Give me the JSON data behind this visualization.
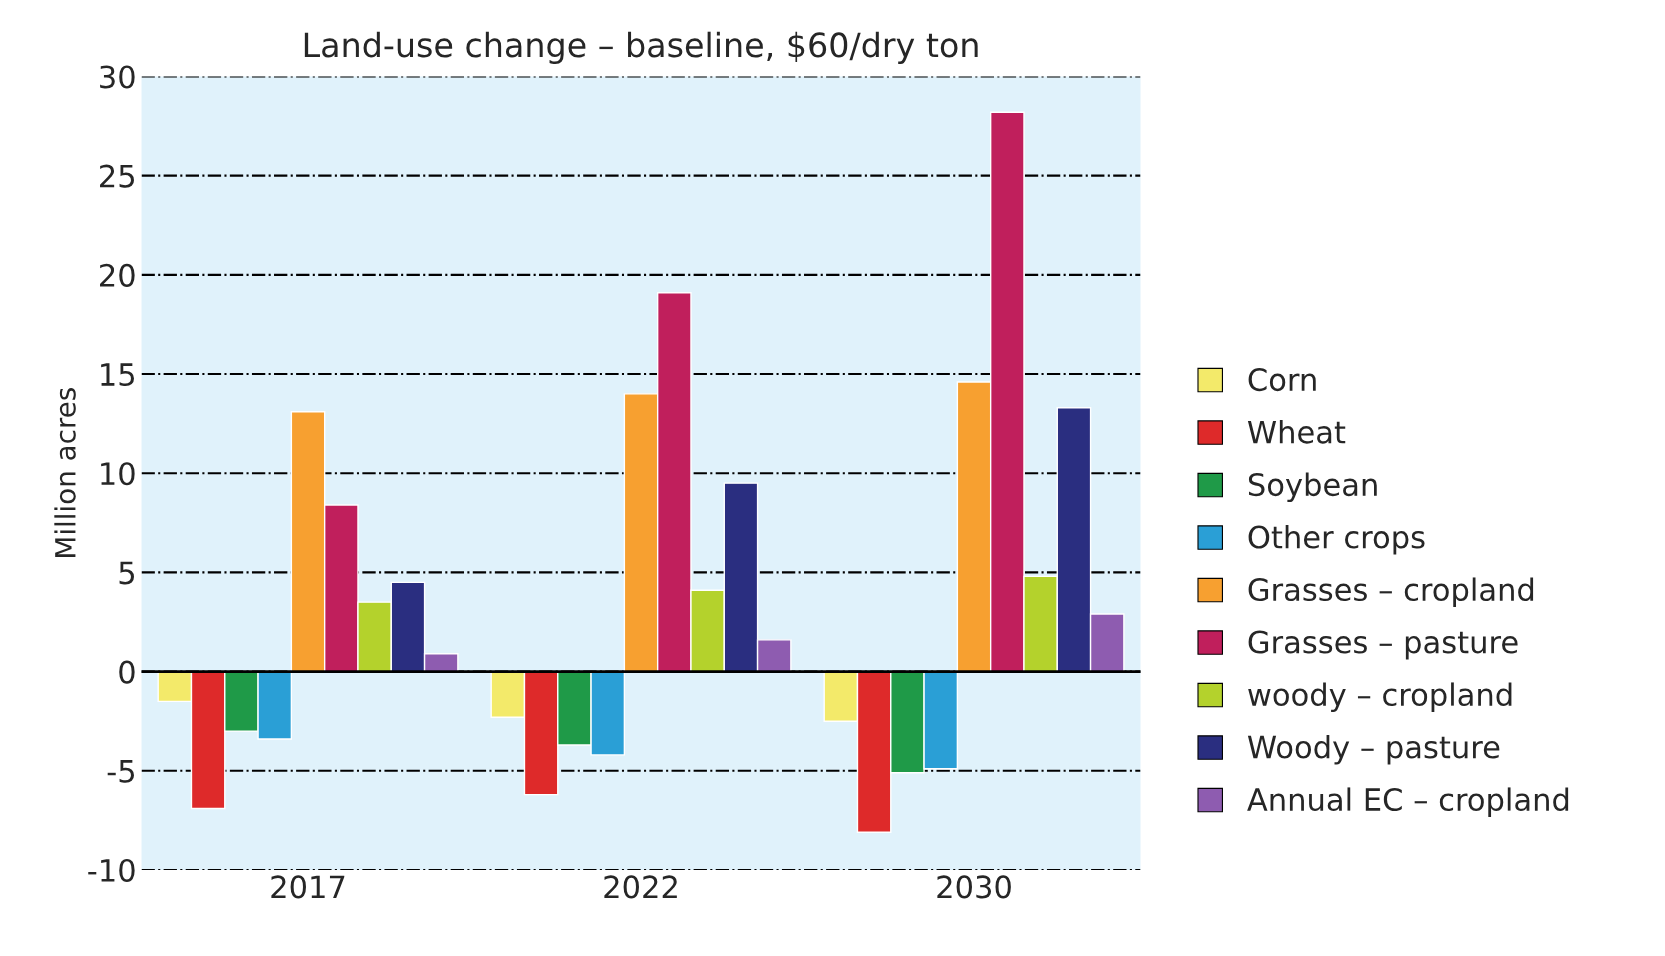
{
  "chart_data": {
    "type": "bar",
    "title": "Land-use change – baseline, $60/dry ton",
    "ylabel": "Million acres",
    "categories": [
      "2017",
      "2022",
      "2030"
    ],
    "series": [
      {
        "name": "Corn",
        "color": "#f3ea6a",
        "values": [
          -1.5,
          -2.3,
          -2.5
        ]
      },
      {
        "name": "Wheat",
        "color": "#de2a2a",
        "values": [
          -6.9,
          -6.2,
          -8.1
        ]
      },
      {
        "name": "Soybean",
        "color": "#1f9a48",
        "values": [
          -3.0,
          -3.7,
          -5.1
        ]
      },
      {
        "name": "Other crops",
        "color": "#2a9fd6",
        "values": [
          -3.4,
          -4.2,
          -4.9
        ]
      },
      {
        "name": "Grasses – cropland",
        "color": "#f7a030",
        "values": [
          13.1,
          14.0,
          14.6
        ]
      },
      {
        "name": "Grasses – pasture",
        "color": "#c01f5c",
        "values": [
          8.4,
          19.1,
          28.2
        ]
      },
      {
        "name": "woody – cropland",
        "color": "#b4d22c",
        "values": [
          3.5,
          4.1,
          4.8
        ]
      },
      {
        "name": "Woody – pasture",
        "color": "#2a2e80",
        "values": [
          4.5,
          9.5,
          13.3
        ]
      },
      {
        "name": "Annual EC – cropland",
        "color": "#8e5cb0",
        "values": [
          0.9,
          1.6,
          2.9
        ]
      }
    ],
    "ylim": [
      -10,
      30
    ],
    "yticks": [
      -10,
      -5,
      0,
      5,
      10,
      15,
      20,
      25,
      30
    ],
    "grid": "y",
    "legend": "right"
  }
}
